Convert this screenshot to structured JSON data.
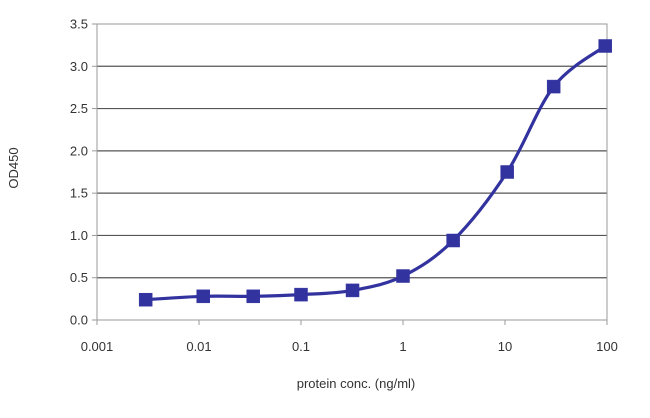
{
  "chart_data": {
    "type": "line",
    "xlabel": "protein conc. (ng/ml)",
    "ylabel": "OD450",
    "xscale": "log",
    "xlim": [
      0.001,
      100
    ],
    "ylim": [
      0,
      3.5
    ],
    "x_ticks": [
      "0.001",
      "0.01",
      "0.1",
      "1",
      "10",
      "100"
    ],
    "y_ticks": [
      "0.0",
      "0.5",
      "1.0",
      "1.5",
      "2.0",
      "2.5",
      "3.0",
      "3.5"
    ],
    "grid": "horizontal",
    "legend": "none",
    "marker": "square",
    "series": [
      {
        "color": "#3333a0",
        "x": [
          0.003,
          0.011,
          0.034,
          0.1,
          0.32,
          1.0,
          3.1,
          10.5,
          30,
          96
        ],
        "y": [
          0.24,
          0.28,
          0.28,
          0.3,
          0.35,
          0.52,
          0.94,
          1.75,
          2.76,
          3.24
        ]
      }
    ]
  }
}
